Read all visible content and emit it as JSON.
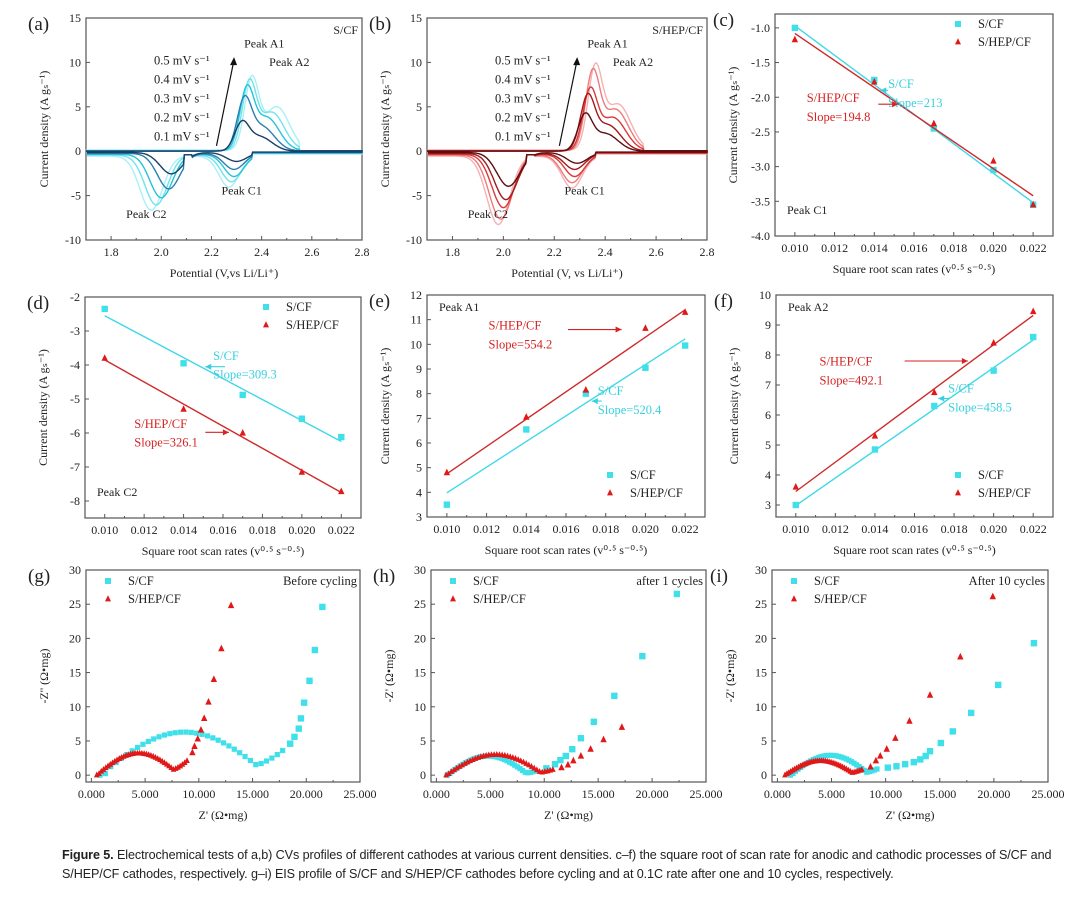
{
  "caption": {
    "label": "Figure 5.",
    "text": " Electrochemical tests of a,b) CVs profiles of different cathodes at various current densities. c–f) the square root of scan rate for anodic and cathodic processes of S/CF and S/HEP/CF cathodes, respectively. g–i) EIS profile of S/CF and S/HEP/CF cathodes before cycling and at 0.1C rate after one and 10 cycles, respectively."
  },
  "colors": {
    "scf": "#3fe0ea",
    "shep": "#e01818",
    "cv_scf": [
      "#1c3f66",
      "#2a7fb0",
      "#26c4d8",
      "#6fe3ee",
      "#a9f0f5"
    ],
    "cv_shep": [
      "#5c0f10",
      "#a3191c",
      "#d83a3a",
      "#ee7b7b",
      "#f6b1b1"
    ]
  },
  "chart_data": [
    {
      "id": "a",
      "panel_label": "(a)",
      "type": "line",
      "title": "S/CF",
      "xlabel": "Potential (V,vs Li/Li⁺)",
      "ylabel": "Current density (A gₛ⁻¹)",
      "xlim": [
        1.7,
        2.8
      ],
      "ylim": [
        -10,
        15
      ],
      "xticks": [
        1.8,
        2.0,
        2.2,
        2.4,
        2.6,
        2.8
      ],
      "yticks": [
        -10,
        -5,
        0,
        5,
        10,
        15
      ],
      "palette": "cv_scf",
      "scan_rates": [
        "0.1 mV s⁻¹",
        "0.2 mV s⁻¹",
        "0.3 mV s⁻¹",
        "0.4 mV s⁻¹",
        "0.5 mV s⁻¹"
      ],
      "annotations": [
        "Peak A1",
        "Peak A2",
        "Peak C1",
        "Peak C2"
      ],
      "series": [
        {
          "name": "0.1 mV s⁻¹",
          "A1": [
            2.32,
            3.6
          ],
          "A2": [
            2.37,
            3.0
          ],
          "C1": [
            2.3,
            -1.0
          ],
          "C2": [
            2.04,
            -2.4
          ]
        },
        {
          "name": "0.2 mV s⁻¹",
          "A1": [
            2.33,
            6.6
          ],
          "A2": [
            2.38,
            5.0
          ],
          "C1": [
            2.29,
            -1.8
          ],
          "C2": [
            2.03,
            -4.0
          ]
        },
        {
          "name": "0.3 mV s⁻¹",
          "A1": [
            2.34,
            8.1
          ],
          "A2": [
            2.4,
            6.8
          ],
          "C1": [
            2.29,
            -2.5
          ],
          "C2": [
            2.0,
            -4.9
          ]
        },
        {
          "name": "0.4 mV s⁻¹",
          "A1": [
            2.35,
            9.2
          ],
          "A2": [
            2.42,
            7.8
          ],
          "C1": [
            2.28,
            -3.0
          ],
          "C2": [
            1.98,
            -5.6
          ]
        },
        {
          "name": "0.5 mV s⁻¹",
          "A1": [
            2.36,
            9.9
          ],
          "A2": [
            2.44,
            8.9
          ],
          "C1": [
            2.27,
            -3.5
          ],
          "C2": [
            1.96,
            -6.1
          ]
        }
      ]
    },
    {
      "id": "b",
      "panel_label": "(b)",
      "type": "line",
      "title": "S/HEP/CF",
      "xlabel": "Potential (V, vs Li/Li⁺)",
      "ylabel": "Current density (A gₛ⁻¹)",
      "xlim": [
        1.7,
        2.8
      ],
      "ylim": [
        -10,
        15
      ],
      "xticks": [
        1.8,
        2.0,
        2.2,
        2.4,
        2.6,
        2.8
      ],
      "yticks": [
        -10,
        -5,
        0,
        5,
        10,
        15
      ],
      "palette": "cv_shep",
      "scan_rates": [
        "0.1 mV s⁻¹",
        "0.2 mV s⁻¹",
        "0.3 mV s⁻¹",
        "0.4 mV s⁻¹",
        "0.5 mV s⁻¹"
      ],
      "annotations": [
        "Peak A1",
        "Peak A2",
        "Peak C1",
        "Peak C2"
      ],
      "series": [
        {
          "name": "0.1 mV s⁻¹",
          "A1": [
            2.32,
            4.8
          ],
          "A2": [
            2.38,
            3.6
          ],
          "C1": [
            2.29,
            -1.2
          ],
          "C2": [
            2.02,
            -3.8
          ]
        },
        {
          "name": "0.2 mV s⁻¹",
          "A1": [
            2.33,
            7.2
          ],
          "A2": [
            2.39,
            5.3
          ],
          "C1": [
            2.28,
            -1.8
          ],
          "C2": [
            2.01,
            -5.2
          ]
        },
        {
          "name": "0.3 mV s⁻¹",
          "A1": [
            2.34,
            8.2
          ],
          "A2": [
            2.41,
            6.8
          ],
          "C1": [
            2.28,
            -2.5
          ],
          "C2": [
            2.0,
            -6.0
          ]
        },
        {
          "name": "0.4 mV s⁻¹",
          "A1": [
            2.35,
            10.6
          ],
          "A2": [
            2.42,
            8.4
          ],
          "C1": [
            2.27,
            -3.1
          ],
          "C2": [
            1.99,
            -7.2
          ]
        },
        {
          "name": "0.5 mV s⁻¹",
          "A1": [
            2.36,
            11.2
          ],
          "A2": [
            2.43,
            9.4
          ],
          "C1": [
            2.27,
            -3.6
          ],
          "C2": [
            1.98,
            -7.7
          ]
        }
      ]
    },
    {
      "id": "c",
      "panel_label": "(c)",
      "type": "scatter",
      "xlabel": "Square root scan rates (v⁰·⁵ s⁻⁰·⁵)",
      "ylabel": "Current density (A gₛ⁻¹)",
      "xlim": [
        0.009,
        0.023
      ],
      "ylim": [
        -4.0,
        -0.8
      ],
      "xticks": [
        0.01,
        0.012,
        0.014,
        0.016,
        0.018,
        0.02,
        0.022
      ],
      "yticks": [
        -4.0,
        -3.5,
        -3.0,
        -2.5,
        -2.0,
        -1.5,
        -1.0
      ],
      "ytick_decimals": 1,
      "peak_label": "Peak C1",
      "legend_position": "top-right",
      "x": [
        0.01,
        0.014,
        0.017,
        0.02,
        0.022
      ],
      "series": [
        {
          "name": "S/CF",
          "marker": "square",
          "values": [
            -1.0,
            -1.75,
            -2.45,
            -3.05,
            -3.55
          ],
          "fit": [
            -0.97,
            -3.52
          ],
          "slope_label": "Slope=213"
        },
        {
          "name": "S/HEP/CF",
          "marker": "triangle",
          "values": [
            -1.17,
            -1.78,
            -2.38,
            -2.92,
            -3.55
          ],
          "fit": [
            -1.08,
            -3.42
          ],
          "slope_label": "Slope=194.8"
        }
      ]
    },
    {
      "id": "d",
      "panel_label": "(d)",
      "type": "scatter",
      "xlabel": "Square root scan rates (v⁰·⁵ s⁻⁰·⁵)",
      "ylabel": "Current density (A gₛ⁻¹)",
      "xlim": [
        0.009,
        0.023
      ],
      "ylim": [
        -8.5,
        -2.0
      ],
      "xticks": [
        0.01,
        0.012,
        0.014,
        0.016,
        0.018,
        0.02,
        0.022
      ],
      "yticks": [
        -8,
        -7,
        -6,
        -5,
        -4,
        -3,
        -2
      ],
      "ytick_decimals": 0,
      "peak_label": "Peak C2",
      "legend_position": "top-right",
      "x": [
        0.01,
        0.014,
        0.017,
        0.02,
        0.022
      ],
      "series": [
        {
          "name": "S/CF",
          "marker": "square",
          "values": [
            -2.35,
            -3.95,
            -4.88,
            -5.58,
            -6.12
          ],
          "fit": [
            -2.55,
            -6.25
          ],
          "slope_label": "Slope=309.3"
        },
        {
          "name": "S/HEP/CF",
          "marker": "triangle",
          "values": [
            -3.8,
            -5.3,
            -6.0,
            -7.15,
            -7.72
          ],
          "fit": [
            -3.85,
            -7.75
          ],
          "slope_label": "Slope=326.1"
        }
      ]
    },
    {
      "id": "e",
      "panel_label": "(e)",
      "type": "scatter",
      "xlabel": "Square root scan rates (v⁰·⁵ s⁻⁰·⁵)",
      "ylabel": "Current density (A gₛ⁻¹)",
      "xlim": [
        0.009,
        0.023
      ],
      "ylim": [
        3,
        12
      ],
      "xticks": [
        0.01,
        0.012,
        0.014,
        0.016,
        0.018,
        0.02,
        0.022
      ],
      "yticks": [
        3,
        4,
        5,
        6,
        7,
        8,
        9,
        10,
        11,
        12
      ],
      "ytick_decimals": 0,
      "peak_label": "Peak A1",
      "legend_position": "bottom-right",
      "x": [
        0.01,
        0.014,
        0.017,
        0.02,
        0.022
      ],
      "series": [
        {
          "name": "S/CF",
          "marker": "square",
          "values": [
            3.5,
            6.55,
            8.0,
            9.05,
            9.95
          ],
          "fit": [
            3.98,
            10.22
          ],
          "slope_label": "Slope=520.4"
        },
        {
          "name": "S/HEP/CF",
          "marker": "triangle",
          "values": [
            4.8,
            7.05,
            8.15,
            10.65,
            11.3
          ],
          "fit": [
            4.75,
            11.4
          ],
          "slope_label": "Slope=554.2"
        }
      ]
    },
    {
      "id": "f",
      "panel_label": "(f)",
      "type": "scatter",
      "xlabel": "Square root scan rates (v⁰·⁵ s⁻⁰·⁵)",
      "ylabel": "Current density (A gₛ⁻¹)",
      "xlim": [
        0.009,
        0.023
      ],
      "ylim": [
        2.6,
        10
      ],
      "xticks": [
        0.01,
        0.012,
        0.014,
        0.016,
        0.018,
        0.02,
        0.022
      ],
      "yticks": [
        3,
        4,
        5,
        6,
        7,
        8,
        9,
        10
      ],
      "ytick_decimals": 0,
      "peak_label": "Peak A2",
      "legend_position": "bottom-right",
      "x": [
        0.01,
        0.014,
        0.017,
        0.02,
        0.022
      ],
      "series": [
        {
          "name": "S/CF",
          "marker": "square",
          "values": [
            3.0,
            4.85,
            6.3,
            7.48,
            8.6
          ],
          "fit": [
            2.98,
            8.5
          ],
          "slope_label": "Slope=458.5"
        },
        {
          "name": "S/HEP/CF",
          "marker": "triangle",
          "values": [
            3.6,
            5.3,
            6.75,
            8.4,
            9.45
          ],
          "fit": [
            3.45,
            9.32
          ],
          "slope_label": "Slope=492.1"
        }
      ]
    },
    {
      "id": "g",
      "panel_label": "(g)",
      "type": "scatter",
      "title": "Before cycling",
      "xlabel": "Z' (Ω•mg)",
      "ylabel": "-Z'' (Ω•mg)",
      "xlim": [
        -0.5,
        25
      ],
      "ylim": [
        -1,
        30
      ],
      "xticks": [
        0,
        5,
        10,
        15,
        20,
        25
      ],
      "yticks": [
        0,
        5,
        10,
        15,
        20,
        25,
        30
      ],
      "legend_position": "top-left",
      "series": [
        {
          "name": "S/CF",
          "marker": "square",
          "semicircle": {
            "start": 0.8,
            "end": 17.8,
            "height": 6.3,
            "dip": 3.6
          },
          "tail": [
            [
              18.5,
              4.6
            ],
            [
              18.9,
              5.6
            ],
            [
              19.3,
              6.8
            ],
            [
              19.5,
              8.3
            ],
            [
              19.8,
              10.6
            ],
            [
              20.3,
              13.8
            ],
            [
              20.8,
              18.3
            ],
            [
              21.5,
              24.6
            ]
          ]
        },
        {
          "name": "S/HEP/CF",
          "marker": "triangle",
          "semicircle": {
            "start": 0.5,
            "end": 8.9,
            "height": 3.2,
            "dip": 2.1
          },
          "tail": [
            [
              9.4,
              3.3
            ],
            [
              9.6,
              4.2
            ],
            [
              9.9,
              5.3
            ],
            [
              10.2,
              6.6
            ],
            [
              10.5,
              8.3
            ],
            [
              10.9,
              10.7
            ],
            [
              11.4,
              14.0
            ],
            [
              12.1,
              18.5
            ],
            [
              13.0,
              24.8
            ]
          ]
        }
      ]
    },
    {
      "id": "h",
      "panel_label": "(h)",
      "type": "scatter",
      "title": "after 1 cycles",
      "xlabel": "Z' (Ω•mg)",
      "ylabel": "-Z' (Ω•mg)",
      "xlim": [
        -0.5,
        25
      ],
      "ylim": [
        -1,
        30
      ],
      "xticks": [
        0,
        5,
        10,
        15,
        20,
        25
      ],
      "yticks": [
        0,
        5,
        10,
        15,
        20,
        25,
        30
      ],
      "legend_position": "top-left",
      "series": [
        {
          "name": "S/CF",
          "marker": "square",
          "semicircle": {
            "start": 1.0,
            "end": 9.2,
            "height": 2.8,
            "dip": 0.6
          },
          "tail": [
            [
              10.2,
              1.0
            ],
            [
              11.0,
              1.6
            ],
            [
              11.5,
              2.2
            ],
            [
              12.0,
              2.8
            ],
            [
              12.6,
              3.8
            ],
            [
              13.4,
              5.4
            ],
            [
              14.6,
              7.8
            ],
            [
              16.5,
              11.6
            ],
            [
              19.1,
              17.4
            ],
            [
              22.3,
              26.5
            ]
          ]
        },
        {
          "name": "S/HEP/CF",
          "marker": "triangle",
          "semicircle": {
            "start": 0.9,
            "end": 10.8,
            "height": 3.0,
            "dip": 0.8
          },
          "tail": [
            [
              11.6,
              1.1
            ],
            [
              12.2,
              1.5
            ],
            [
              12.7,
              2.1
            ],
            [
              13.4,
              2.8
            ],
            [
              14.3,
              3.8
            ],
            [
              15.5,
              5.2
            ],
            [
              17.2,
              7.0
            ]
          ]
        }
      ]
    },
    {
      "id": "i",
      "panel_label": "(i)",
      "type": "scatter",
      "title": "After 10 cycles",
      "xlabel": "Z' (Ω•mg)",
      "ylabel": "-Z' (Ω•mg)",
      "xlim": [
        -0.5,
        25
      ],
      "ylim": [
        -1,
        30
      ],
      "xticks": [
        0,
        5,
        10,
        15,
        20,
        25
      ],
      "yticks": [
        0,
        5,
        10,
        15,
        20,
        25,
        30
      ],
      "legend_position": "top-left",
      "series": [
        {
          "name": "S/CF",
          "marker": "square",
          "semicircle": {
            "start": 1.2,
            "end": 9.2,
            "height": 2.9,
            "dip": 0.9
          },
          "tail": [
            [
              10.2,
              1.1
            ],
            [
              11.0,
              1.3
            ],
            [
              11.8,
              1.6
            ],
            [
              12.6,
              1.9
            ],
            [
              13.2,
              2.3
            ],
            [
              13.7,
              2.8
            ],
            [
              14.1,
              3.5
            ],
            [
              15.1,
              4.7
            ],
            [
              16.2,
              6.4
            ],
            [
              17.9,
              9.1
            ],
            [
              20.4,
              13.2
            ],
            [
              23.7,
              19.3
            ]
          ]
        },
        {
          "name": "S/HEP/CF",
          "marker": "triangle",
          "semicircle": {
            "start": 0.7,
            "end": 7.8,
            "height": 2.1,
            "dip": 0.8
          },
          "tail": [
            [
              8.6,
              1.2
            ],
            [
              9.1,
              2.1
            ],
            [
              9.5,
              2.8
            ],
            [
              10.1,
              3.8
            ],
            [
              10.9,
              5.4
            ],
            [
              12.2,
              7.9
            ],
            [
              14.1,
              11.7
            ],
            [
              16.9,
              17.3
            ],
            [
              19.9,
              26.1
            ]
          ]
        }
      ]
    }
  ]
}
